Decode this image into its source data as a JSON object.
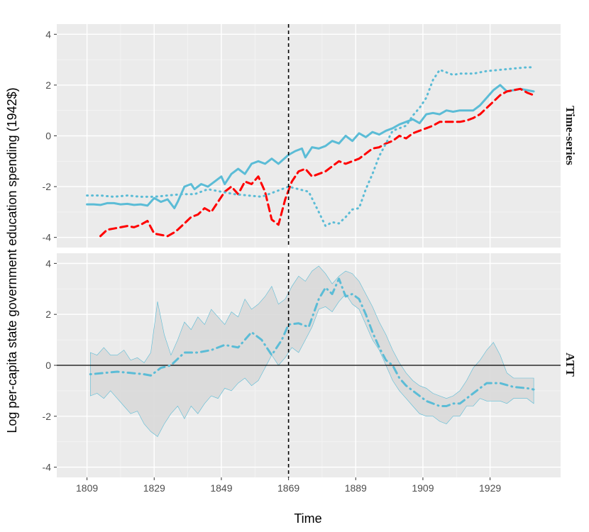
{
  "chart_data": {
    "type": "line",
    "xlabel": "Time",
    "ylabel": "Log per-capita state government education spending (1942$)",
    "xlim": [
      1800,
      1950
    ],
    "x_ticks": [
      1809,
      1829,
      1849,
      1869,
      1889,
      1909,
      1929
    ],
    "treatment_year": 1869,
    "colors": {
      "blue": "#5bbcd6",
      "red": "#ff0000",
      "ribbon": "#d9d9d9",
      "ribbon_edge": "#5bbcd6",
      "panel_bg": "#ebebeb",
      "grid": "#ffffff"
    },
    "panels": [
      {
        "strip": "Time-series",
        "ylim": [
          -4.4,
          4.4
        ],
        "y_ticks": [
          -4,
          -2,
          0,
          2,
          4
        ],
        "series": [
          {
            "style": "solid",
            "color": "#5bbcd6",
            "x": [
              1809,
              1811,
              1813,
              1815,
              1817,
              1819,
              1821,
              1823,
              1825,
              1827,
              1829,
              1831,
              1833,
              1835,
              1836,
              1838,
              1840,
              1841,
              1843,
              1845,
              1847,
              1849,
              1850,
              1852,
              1854,
              1856,
              1858,
              1860,
              1862,
              1864,
              1866,
              1869,
              1871,
              1873,
              1874,
              1876,
              1878,
              1880,
              1882,
              1884,
              1886,
              1888,
              1890,
              1892,
              1894,
              1896,
              1898,
              1900,
              1902,
              1904,
              1906,
              1908,
              1910,
              1912,
              1914,
              1916,
              1918,
              1920,
              1922,
              1924,
              1926,
              1928,
              1930,
              1932,
              1934,
              1936,
              1938,
              1940,
              1942
            ],
            "y": [
              -2.7,
              -2.7,
              -2.72,
              -2.65,
              -2.65,
              -2.7,
              -2.68,
              -2.72,
              -2.7,
              -2.75,
              -2.45,
              -2.6,
              -2.5,
              -2.85,
              -2.6,
              -2.0,
              -1.9,
              -2.1,
              -1.9,
              -2.0,
              -1.8,
              -1.6,
              -1.9,
              -1.5,
              -1.3,
              -1.5,
              -1.1,
              -1.0,
              -1.1,
              -0.9,
              -1.1,
              -0.75,
              -0.6,
              -0.5,
              -0.85,
              -0.45,
              -0.5,
              -0.4,
              -0.2,
              -0.3,
              0.0,
              -0.2,
              0.1,
              -0.05,
              0.15,
              0.05,
              0.2,
              0.3,
              0.45,
              0.55,
              0.65,
              0.5,
              0.85,
              0.9,
              0.85,
              1.0,
              0.95,
              1.0,
              1.0,
              1.0,
              1.2,
              1.5,
              1.8,
              2.0,
              1.75,
              1.8,
              1.85,
              1.8,
              1.75
            ]
          },
          {
            "style": "dashed",
            "color": "#ff0000",
            "x": [
              1813,
              1815,
              1817,
              1819,
              1821,
              1823,
              1825,
              1827,
              1829,
              1831,
              1833,
              1835,
              1836,
              1838,
              1840,
              1842,
              1844,
              1846,
              1848,
              1850,
              1852,
              1854,
              1856,
              1858,
              1860,
              1862,
              1864,
              1866,
              1868,
              1870,
              1872,
              1874,
              1876,
              1878,
              1880,
              1882,
              1884,
              1886,
              1888,
              1890,
              1892,
              1894,
              1896,
              1898,
              1900,
              1902,
              1904,
              1906,
              1908,
              1910,
              1912,
              1914,
              1916,
              1918,
              1920,
              1922,
              1924,
              1926,
              1928,
              1930,
              1932,
              1934,
              1936,
              1938,
              1940,
              1942
            ],
            "y": [
              -3.95,
              -3.7,
              -3.65,
              -3.6,
              -3.55,
              -3.6,
              -3.5,
              -3.35,
              -3.85,
              -3.9,
              -3.95,
              -3.8,
              -3.7,
              -3.45,
              -3.2,
              -3.1,
              -2.85,
              -3.0,
              -2.6,
              -2.2,
              -2.0,
              -2.3,
              -1.8,
              -1.9,
              -1.6,
              -2.2,
              -3.3,
              -3.5,
              -2.5,
              -1.8,
              -1.4,
              -1.3,
              -1.6,
              -1.5,
              -1.4,
              -1.2,
              -1.0,
              -1.1,
              -1.0,
              -0.9,
              -0.7,
              -0.5,
              -0.45,
              -0.3,
              -0.2,
              0.0,
              -0.1,
              0.1,
              0.2,
              0.3,
              0.4,
              0.55,
              0.55,
              0.55,
              0.55,
              0.6,
              0.7,
              0.85,
              1.1,
              1.35,
              1.6,
              1.75,
              1.8,
              1.85,
              1.7,
              1.6
            ]
          },
          {
            "style": "dotted",
            "color": "#5bbcd6",
            "x": [
              1809,
              1813,
              1817,
              1821,
              1825,
              1829,
              1833,
              1837,
              1841,
              1845,
              1849,
              1853,
              1857,
              1861,
              1865,
              1869,
              1872,
              1875,
              1878,
              1880,
              1882,
              1884,
              1886,
              1888,
              1890,
              1892,
              1894,
              1896,
              1898,
              1900,
              1902,
              1904,
              1906,
              1908,
              1910,
              1912,
              1914,
              1916,
              1918,
              1920,
              1924,
              1928,
              1932,
              1936,
              1940,
              1942
            ],
            "y": [
              -2.35,
              -2.35,
              -2.4,
              -2.35,
              -2.4,
              -2.4,
              -2.35,
              -2.3,
              -2.3,
              -2.1,
              -2.2,
              -2.3,
              -2.35,
              -2.4,
              -2.2,
              -2.0,
              -2.1,
              -2.2,
              -3.0,
              -3.55,
              -3.4,
              -3.45,
              -3.2,
              -2.9,
              -2.85,
              -2.1,
              -1.5,
              -0.8,
              -0.3,
              0.2,
              0.3,
              0.4,
              0.8,
              1.1,
              1.5,
              2.2,
              2.6,
              2.5,
              2.4,
              2.45,
              2.45,
              2.55,
              2.6,
              2.65,
              2.7,
              2.7
            ]
          }
        ]
      },
      {
        "strip": "ATT",
        "ylim": [
          -4.4,
          4.4
        ],
        "y_ticks": [
          -4,
          -2,
          0,
          2,
          4
        ],
        "hline": 0,
        "ribbon": {
          "x": [
            1810,
            1812,
            1814,
            1816,
            1818,
            1820,
            1822,
            1824,
            1826,
            1828,
            1830,
            1832,
            1834,
            1836,
            1838,
            1840,
            1842,
            1844,
            1846,
            1848,
            1850,
            1852,
            1854,
            1856,
            1858,
            1860,
            1862,
            1864,
            1866,
            1868,
            1870,
            1872,
            1874,
            1876,
            1878,
            1880,
            1882,
            1884,
            1886,
            1888,
            1890,
            1892,
            1894,
            1896,
            1898,
            1900,
            1902,
            1904,
            1906,
            1908,
            1910,
            1912,
            1914,
            1916,
            1918,
            1920,
            1922,
            1924,
            1926,
            1928,
            1930,
            1932,
            1934,
            1936,
            1938,
            1940,
            1942
          ],
          "upper": [
            0.5,
            0.4,
            0.7,
            0.4,
            0.4,
            0.6,
            0.2,
            0.3,
            0.1,
            0.5,
            2.5,
            1.2,
            0.4,
            1.0,
            1.7,
            1.4,
            1.9,
            1.6,
            2.2,
            1.9,
            1.6,
            2.1,
            1.9,
            2.6,
            2.2,
            2.4,
            2.7,
            3.1,
            2.4,
            2.6,
            3.1,
            3.5,
            3.3,
            3.7,
            3.9,
            3.6,
            3.2,
            3.5,
            3.7,
            3.6,
            3.3,
            2.8,
            2.3,
            1.7,
            1.2,
            0.6,
            0.1,
            -0.3,
            -0.6,
            -0.8,
            -0.9,
            -1.1,
            -1.2,
            -1.3,
            -1.2,
            -1.0,
            -0.6,
            -0.1,
            0.2,
            0.6,
            0.9,
            0.4,
            -0.3,
            -0.5,
            -0.5,
            -0.5,
            -0.5
          ],
          "lower": [
            -1.2,
            -1.1,
            -1.3,
            -1.0,
            -1.3,
            -1.6,
            -1.9,
            -1.8,
            -2.3,
            -2.6,
            -2.8,
            -2.3,
            -1.9,
            -1.6,
            -2.1,
            -1.6,
            -1.9,
            -1.5,
            -1.2,
            -1.3,
            -0.9,
            -1.0,
            -0.7,
            -0.5,
            -0.8,
            -0.6,
            -0.1,
            0.4,
            0.0,
            0.3,
            0.7,
            0.5,
            1.0,
            1.5,
            2.2,
            2.3,
            2.1,
            2.5,
            2.8,
            2.4,
            2.2,
            1.6,
            1.0,
            0.6,
            0.0,
            -0.6,
            -1.0,
            -1.3,
            -1.6,
            -1.9,
            -2.0,
            -2.0,
            -2.2,
            -2.3,
            -2.0,
            -2.0,
            -1.6,
            -1.6,
            -1.3,
            -1.4,
            -1.4,
            -1.4,
            -1.5,
            -1.3,
            -1.3,
            -1.3,
            -1.5
          ]
        },
        "series": [
          {
            "style": "dotdash",
            "color": "#5bbcd6",
            "x": [
              1810,
              1814,
              1818,
              1822,
              1826,
              1828,
              1831,
              1834,
              1838,
              1842,
              1846,
              1850,
              1854,
              1858,
              1861,
              1864,
              1867,
              1869,
              1872,
              1875,
              1878,
              1880,
              1882,
              1884,
              1886,
              1888,
              1890,
              1892,
              1894,
              1896,
              1898,
              1900,
              1902,
              1904,
              1906,
              1908,
              1910,
              1912,
              1914,
              1916,
              1918,
              1920,
              1924,
              1928,
              1932,
              1936,
              1940,
              1942
            ],
            "y": [
              -0.35,
              -0.3,
              -0.25,
              -0.3,
              -0.35,
              -0.4,
              -0.1,
              0.0,
              0.5,
              0.5,
              0.6,
              0.8,
              0.7,
              1.3,
              1.0,
              0.4,
              1.0,
              1.6,
              1.65,
              1.5,
              2.6,
              3.05,
              2.8,
              3.4,
              2.7,
              2.8,
              2.6,
              2.0,
              1.3,
              0.7,
              0.2,
              0.0,
              -0.5,
              -0.8,
              -1.0,
              -1.2,
              -1.4,
              -1.5,
              -1.6,
              -1.6,
              -1.5,
              -1.5,
              -1.1,
              -0.7,
              -0.7,
              -0.85,
              -0.9,
              -0.95
            ]
          }
        ]
      }
    ]
  }
}
